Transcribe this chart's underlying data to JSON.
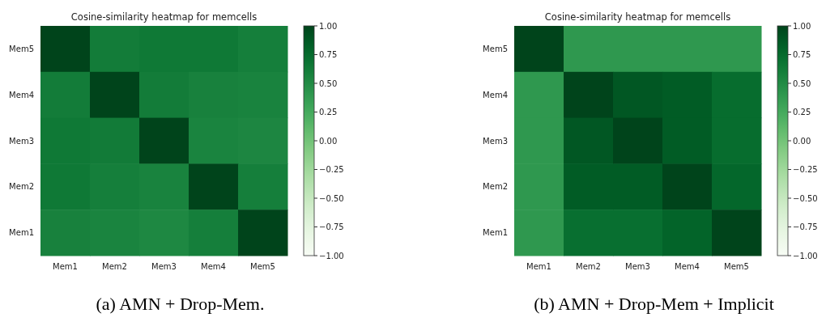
{
  "chart_data": [
    {
      "type": "heatmap",
      "title": "Cosine-similarity heatmap for memcells",
      "categories": [
        "Mem1",
        "Mem2",
        "Mem3",
        "Mem4",
        "Mem5"
      ],
      "y_categories": [
        "Mem5",
        "Mem4",
        "Mem3",
        "Mem2",
        "Mem1"
      ],
      "cells": [
        [
          1.0,
          0.62,
          0.65,
          0.65,
          0.6
        ],
        [
          0.62,
          1.0,
          0.62,
          0.58,
          0.57
        ],
        [
          0.65,
          0.63,
          1.0,
          0.56,
          0.54
        ],
        [
          0.65,
          0.6,
          0.57,
          1.0,
          0.6
        ],
        [
          0.58,
          0.56,
          0.53,
          0.6,
          1.0
        ]
      ],
      "clim": [
        -1,
        1
      ],
      "cticks": [
        {
          "value": -1,
          "label": "−1.00"
        },
        {
          "value": -0.75,
          "label": "−0.75"
        },
        {
          "value": -0.5,
          "label": "−0.50"
        },
        {
          "value": -0.25,
          "label": "−0.25"
        },
        {
          "value": 0,
          "label": "0.00"
        },
        {
          "value": 0.25,
          "label": "0.25"
        },
        {
          "value": 0.5,
          "label": "0.50"
        },
        {
          "value": 0.75,
          "label": "0.75"
        },
        {
          "value": 1,
          "label": "1.00"
        }
      ],
      "annotations": [
        "(a) AMN + Drop-Mem."
      ]
    },
    {
      "type": "heatmap",
      "title": "Cosine-similarity heatmap for memcells",
      "categories": [
        "Mem1",
        "Mem2",
        "Mem3",
        "Mem4",
        "Mem5"
      ],
      "y_categories": [
        "Mem5",
        "Mem4",
        "Mem3",
        "Mem2",
        "Mem1"
      ],
      "cells": [
        [
          1.0,
          0.4,
          0.4,
          0.4,
          0.4
        ],
        [
          0.4,
          1.0,
          0.88,
          0.85,
          0.74
        ],
        [
          0.4,
          0.88,
          1.0,
          0.85,
          0.74
        ],
        [
          0.4,
          0.85,
          0.85,
          1.0,
          0.78
        ],
        [
          0.4,
          0.72,
          0.72,
          0.8,
          1.0
        ]
      ],
      "clim": [
        -1,
        1
      ],
      "cticks": [
        {
          "value": -1,
          "label": "−1.00"
        },
        {
          "value": -0.75,
          "label": "−0.75"
        },
        {
          "value": -0.5,
          "label": "−0.50"
        },
        {
          "value": -0.25,
          "label": "−0.25"
        },
        {
          "value": 0,
          "label": "0.00"
        },
        {
          "value": 0.25,
          "label": "0.25"
        },
        {
          "value": 0.5,
          "label": "0.50"
        },
        {
          "value": 0.75,
          "label": "0.75"
        },
        {
          "value": 1,
          "label": "1.00"
        }
      ],
      "annotations": [
        "(b) AMN + Drop-Mem + Implicit"
      ]
    }
  ]
}
